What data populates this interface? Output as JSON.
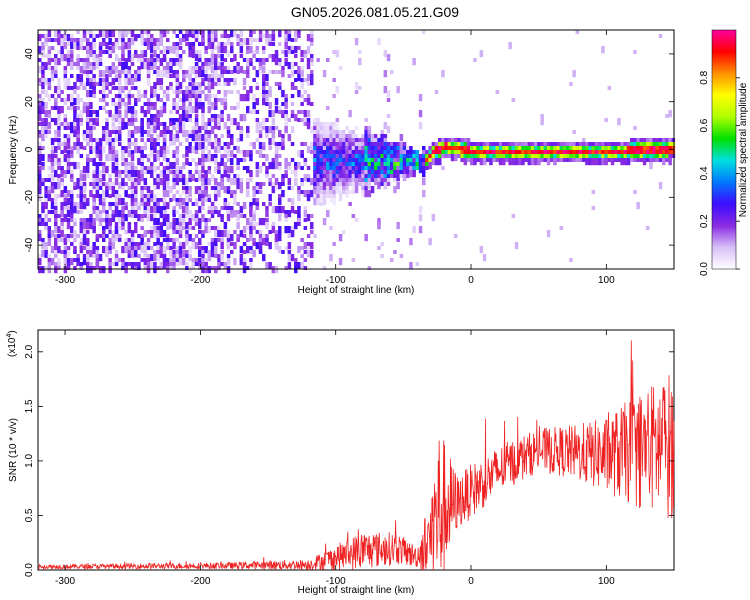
{
  "title": "GN05.2026.081.05.21.G09",
  "chart_data": [
    {
      "type": "heatmap",
      "xlabel": "Height of straight line (km)",
      "ylabel": "Frequency (Hz)",
      "xlim": [
        -320,
        150
      ],
      "ylim": [
        -50,
        50
      ],
      "xticks": [
        -300,
        -200,
        -100,
        0,
        100
      ],
      "yticks": [
        -40,
        -20,
        0,
        20,
        40
      ],
      "colorbar": {
        "label": "Normalized spectral amplitude",
        "range": [
          0,
          1
        ],
        "ticks": [
          "0.0",
          "0.2",
          "0.4",
          "0.6",
          "0.8"
        ],
        "tick_values": [
          0,
          0.2,
          0.4,
          0.6,
          0.8
        ],
        "colors": [
          "#ffffff",
          "#d8c0f8",
          "#8a2be2",
          "#3c0cff",
          "#0078ff",
          "#00e0e0",
          "#00e000",
          "#b0ff00",
          "#ffff00",
          "#ff9000",
          "#ff0000",
          "#ff00a0"
        ]
      },
      "ridge": [
        {
          "x": -35,
          "y": -4
        },
        {
          "x": -28,
          "y": 0
        },
        {
          "x": -20,
          "y": 2
        },
        {
          "x": -10,
          "y": 1
        },
        {
          "x": 0,
          "y": 0
        },
        {
          "x": 50,
          "y": 0
        },
        {
          "x": 100,
          "y": 0
        },
        {
          "x": 150,
          "y": 1
        }
      ]
    },
    {
      "type": "line",
      "xlabel": "Height of straight line (km)",
      "ylabel": "SNR (10 * v/v)",
      "scale_label": "(x10",
      "scale_exp": "4",
      "scale_close": ")",
      "xlim": [
        -320,
        150
      ],
      "ylim": [
        0,
        2.2
      ],
      "xticks": [
        -300,
        -200,
        -100,
        0,
        100
      ],
      "yticks": [
        "0.0",
        "0.5",
        "1.0",
        "1.5",
        "2.0"
      ],
      "ytick_values": [
        0,
        0.5,
        1.0,
        1.5,
        2.0
      ],
      "series": [
        {
          "color": "#ee2222",
          "envelope": [
            {
              "x": -320,
              "base": 0.03,
              "amp": 0.02
            },
            {
              "x": -180,
              "base": 0.04,
              "amp": 0.03
            },
            {
              "x": -120,
              "base": 0.05,
              "amp": 0.05
            },
            {
              "x": -105,
              "base": 0.1,
              "amp": 0.1
            },
            {
              "x": -80,
              "base": 0.18,
              "amp": 0.18
            },
            {
              "x": -55,
              "base": 0.2,
              "amp": 0.15
            },
            {
              "x": -40,
              "base": 0.12,
              "amp": 0.1
            },
            {
              "x": -30,
              "base": 0.3,
              "amp": 0.4
            },
            {
              "x": -24,
              "base": 0.55,
              "amp": 0.8
            },
            {
              "x": -10,
              "base": 0.62,
              "amp": 0.25
            },
            {
              "x": 0,
              "base": 0.72,
              "amp": 0.25
            },
            {
              "x": 25,
              "base": 0.95,
              "amp": 0.22
            },
            {
              "x": 50,
              "base": 1.1,
              "amp": 0.2
            },
            {
              "x": 75,
              "base": 1.08,
              "amp": 0.25
            },
            {
              "x": 100,
              "base": 1.05,
              "amp": 0.35
            },
            {
              "x": 125,
              "base": 1.1,
              "amp": 0.55
            },
            {
              "x": 150,
              "base": 1.15,
              "amp": 0.7
            }
          ]
        }
      ]
    }
  ]
}
